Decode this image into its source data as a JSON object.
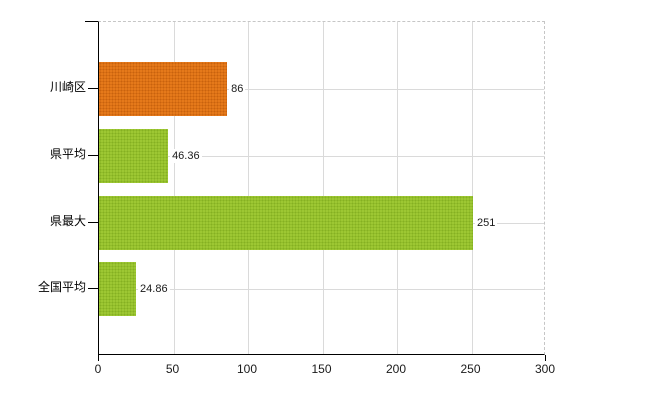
{
  "chart_data": {
    "type": "bar",
    "orientation": "horizontal",
    "title": "",
    "xlabel": "",
    "ylabel": "",
    "categories": [
      "川崎区",
      "県平均",
      "県最大",
      "全国平均"
    ],
    "values": [
      86,
      46.36,
      251,
      24.86
    ],
    "value_labels": [
      "86",
      "46.36",
      "251",
      "24.86"
    ],
    "bar_colors": [
      "#e5791a",
      "#9dc733",
      "#9dc733",
      "#9dc733"
    ],
    "bar_dot_colors": [
      "#c9620d",
      "#85b022",
      "#85b022",
      "#85b022"
    ],
    "xlim": [
      0,
      300
    ],
    "xticks": [
      0,
      50,
      100,
      150,
      200,
      250,
      300
    ],
    "xtick_labels": [
      "0",
      "50",
      "100",
      "150",
      "200",
      "250",
      "300"
    ],
    "grid": true,
    "legend": false,
    "colors": {
      "background": "#ffffff",
      "grid": "#dadada",
      "dashed_border": "#c6c6c6",
      "axis": "#000000",
      "text": "#1a1a1a"
    }
  }
}
